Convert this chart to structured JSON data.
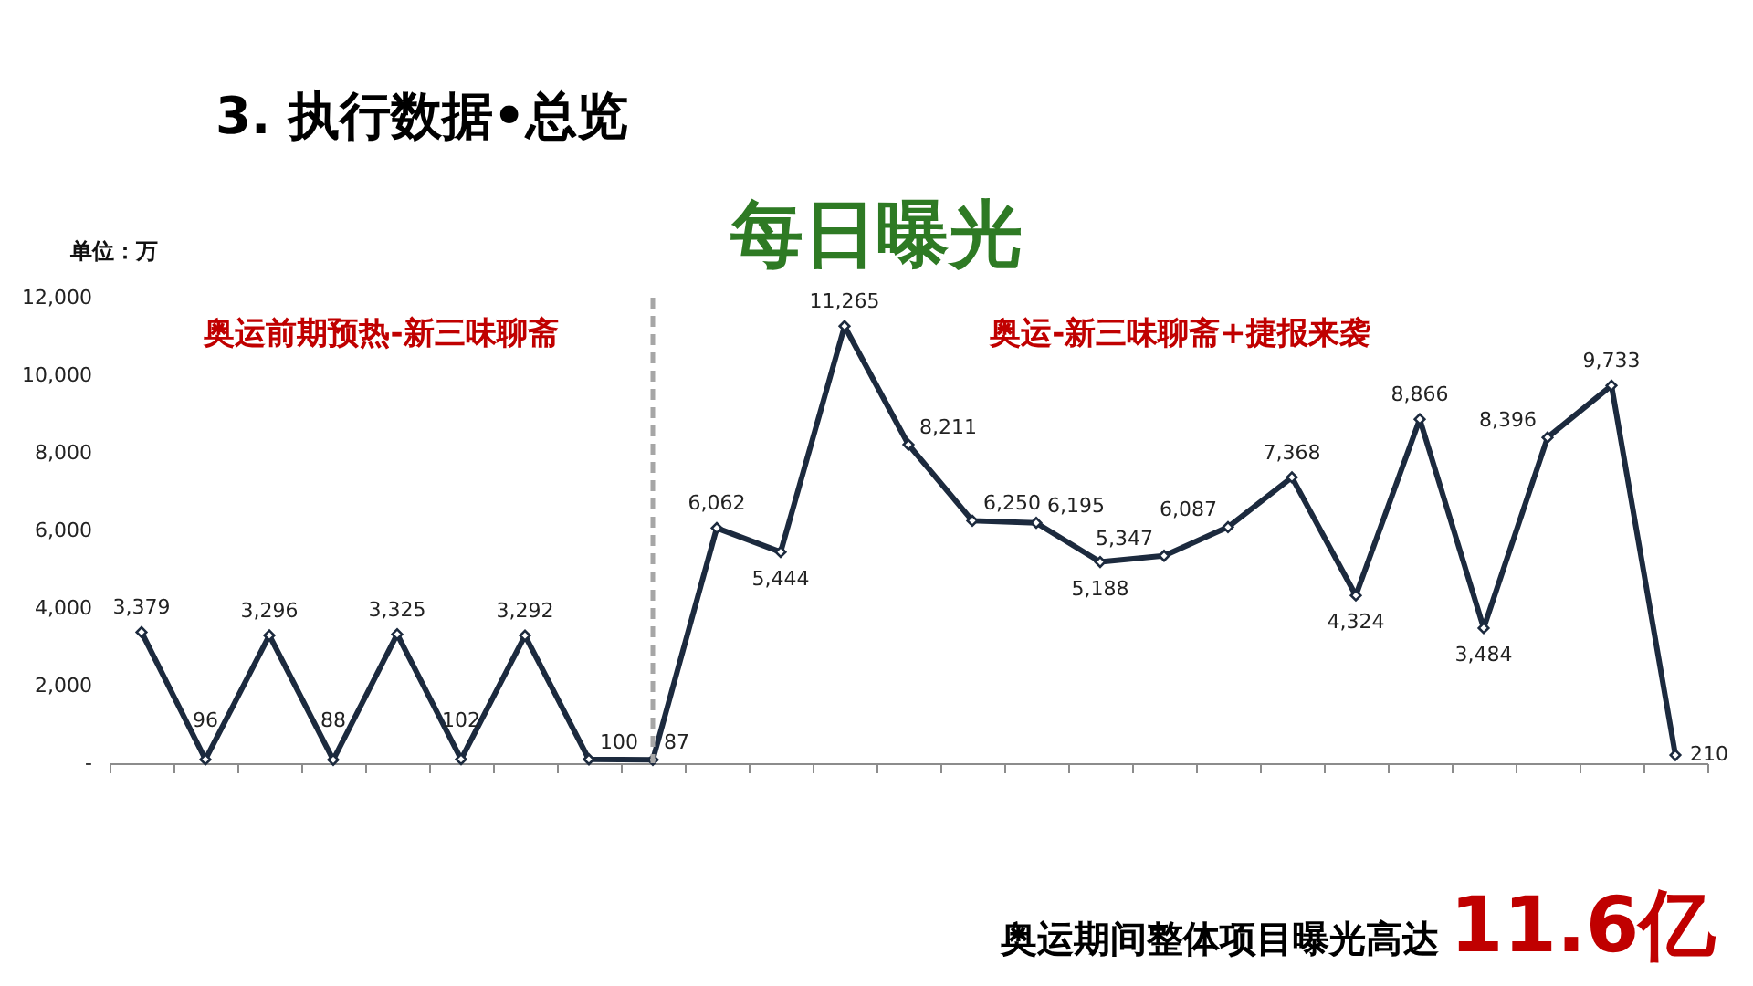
{
  "chart_data": {
    "type": "line",
    "title": "3. 执行数据•总览",
    "subtitle": "每日曝光",
    "ylabel": "单位：万",
    "categories": [
      null,
      null,
      null,
      null,
      null,
      null,
      null,
      null,
      null,
      null,
      null,
      null,
      null,
      null,
      null,
      null,
      null,
      null,
      null,
      null,
      null,
      null,
      null,
      null,
      null
    ],
    "series": [
      {
        "color": "#1c2a3e",
        "values": [
          3379,
          96,
          3296,
          88,
          3325,
          102,
          3292,
          100,
          87,
          6062,
          5444,
          11265,
          8211,
          6250,
          6195,
          5188,
          5347,
          6087,
          7368,
          4324,
          8866,
          3484,
          8396,
          9733,
          210
        ],
        "value_labels": [
          "3,379",
          "96",
          "3,296",
          "88",
          "3,325",
          "102",
          "3,292",
          "100",
          "87",
          "6,062",
          "5,444",
          "11,265",
          "8,211",
          "6,250",
          "6,195",
          "5,188",
          "5,347",
          "6,087",
          "7,368",
          "4,324",
          "8,866",
          "3,484",
          "8,396",
          "9,733",
          "210"
        ]
      }
    ],
    "ylim": [
      0,
      12000
    ],
    "yticks": [
      {
        "value": 0,
        "label": "-"
      },
      {
        "value": 2000,
        "label": "2,000"
      },
      {
        "value": 4000,
        "label": "4,000"
      },
      {
        "value": 6000,
        "label": "6,000"
      },
      {
        "value": 8000,
        "label": "8,000"
      },
      {
        "value": 10000,
        "label": "10,000"
      },
      {
        "value": 12000,
        "label": "12,000"
      }
    ],
    "tick_labels": "y",
    "marker": "diamond",
    "line_style": "solid",
    "annotations": [
      "奥运前期预热-新三味聊斋",
      "奥运-新三味聊斋+捷报来袭",
      "奥运期间整体项目曝光高达",
      "11.6亿"
    ]
  }
}
